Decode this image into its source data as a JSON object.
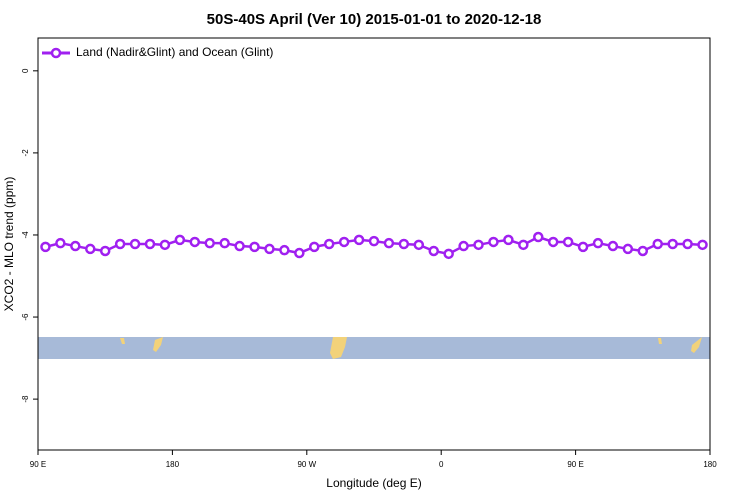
{
  "chart_data": {
    "type": "line",
    "title": "50S-40S April (Ver 10)   2015-01-01 to 2020-12-18",
    "x_label": "Longitude (deg E)",
    "y_label": "XCO2 - MLO trend (ppm)",
    "x": [
      95,
      105,
      115,
      125,
      135,
      145,
      155,
      165,
      175,
      185,
      195,
      205,
      215,
      225,
      235,
      245,
      255,
      265,
      275,
      285,
      295,
      305,
      315,
      325,
      335,
      345,
      355,
      365,
      375,
      385,
      395,
      405,
      415,
      425,
      435,
      445,
      455,
      465,
      475,
      485,
      495,
      505,
      515,
      525,
      535
    ],
    "series": [
      {
        "name": "Land (Nadir&Glint) and Ocean (Glint)",
        "color": "#a020f0",
        "values": [
          -4.29,
          -4.2,
          -4.27,
          -4.34,
          -4.39,
          -4.22,
          -4.22,
          -4.22,
          -4.24,
          -4.12,
          -4.17,
          -4.2,
          -4.2,
          -4.27,
          -4.29,
          -4.34,
          -4.37,
          -4.44,
          -4.29,
          -4.22,
          -4.17,
          -4.12,
          -4.15,
          -4.2,
          -4.22,
          -4.24,
          -4.39,
          -4.46,
          -4.27,
          -4.24,
          -4.17,
          -4.12,
          -4.24,
          -4.05,
          -4.17,
          -4.17,
          -4.29,
          -4.2,
          -4.27,
          -4.34,
          -4.39,
          -4.22,
          -4.22,
          -4.22,
          -4.24
        ]
      }
    ],
    "xlim": [
      90,
      540
    ],
    "xticks": [
      {
        "value": 90,
        "label": "90 E"
      },
      {
        "value": 180,
        "label": "180"
      },
      {
        "value": 270,
        "label": "90 W"
      },
      {
        "value": 360,
        "label": "0"
      },
      {
        "value": 450,
        "label": "90 E"
      },
      {
        "value": 540,
        "label": "180"
      }
    ],
    "ylim": [
      -9.24,
      0.8
    ],
    "yticks": [
      0,
      -2,
      -4,
      -6,
      -8
    ],
    "legend": "top-left"
  }
}
